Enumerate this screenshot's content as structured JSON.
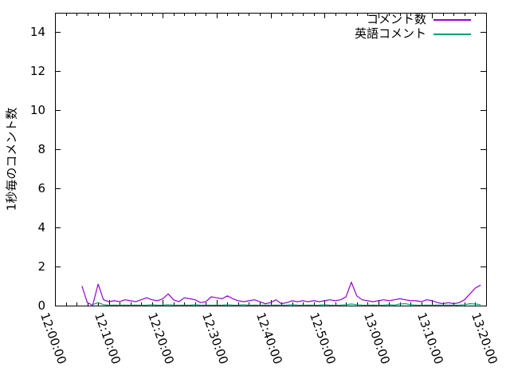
{
  "figure": {
    "background_color": "#ffffff",
    "axis_color": "#000000",
    "text_color": "#000000"
  },
  "chart_data": {
    "type": "line",
    "title": "",
    "xlabel": "",
    "ylabel": "1秒毎のコメント数",
    "ylim": [
      0,
      15
    ],
    "yticks": [
      0,
      2,
      4,
      6,
      8,
      10,
      12,
      14
    ],
    "xticks": [
      "12:00:00",
      "12:10:00",
      "12:20:00",
      "12:30:00",
      "12:40:00",
      "12:50:00",
      "13:00:00",
      "13:10:00",
      "13:20:00"
    ],
    "x_minor_tick_interval_minutes": 2,
    "x_range": [
      "12:00:00",
      "13:20:00"
    ],
    "grid": false,
    "legend_position": "top-right-inside",
    "series": [
      {
        "key": "comment-count",
        "name": "コメント数",
        "color": "#9400d3",
        "points": [
          [
            "12:05",
            1.0
          ],
          [
            "12:06",
            0.15
          ],
          [
            "12:07",
            0.02
          ],
          [
            "12:08",
            1.1
          ],
          [
            "12:09",
            0.3
          ],
          [
            "12:10",
            0.2
          ],
          [
            "12:11",
            0.25
          ],
          [
            "12:12",
            0.2
          ],
          [
            "12:13",
            0.3
          ],
          [
            "12:14",
            0.25
          ],
          [
            "12:15",
            0.2
          ],
          [
            "12:16",
            0.3
          ],
          [
            "12:17",
            0.4
          ],
          [
            "12:18",
            0.3
          ],
          [
            "12:19",
            0.25
          ],
          [
            "12:20",
            0.35
          ],
          [
            "12:21",
            0.6
          ],
          [
            "12:22",
            0.3
          ],
          [
            "12:23",
            0.2
          ],
          [
            "12:24",
            0.4
          ],
          [
            "12:25",
            0.35
          ],
          [
            "12:26",
            0.3
          ],
          [
            "12:27",
            0.15
          ],
          [
            "12:28",
            0.2
          ],
          [
            "12:29",
            0.45
          ],
          [
            "12:30",
            0.4
          ],
          [
            "12:31",
            0.35
          ],
          [
            "12:32",
            0.5
          ],
          [
            "12:33",
            0.35
          ],
          [
            "12:34",
            0.25
          ],
          [
            "12:35",
            0.2
          ],
          [
            "12:36",
            0.25
          ],
          [
            "12:37",
            0.3
          ],
          [
            "12:38",
            0.2
          ],
          [
            "12:39",
            0.1
          ],
          [
            "12:40",
            0.15
          ],
          [
            "12:41",
            0.3
          ],
          [
            "12:42",
            0.1
          ],
          [
            "12:43",
            0.15
          ],
          [
            "12:44",
            0.25
          ],
          [
            "12:45",
            0.2
          ],
          [
            "12:46",
            0.25
          ],
          [
            "12:47",
            0.2
          ],
          [
            "12:48",
            0.25
          ],
          [
            "12:49",
            0.2
          ],
          [
            "12:50",
            0.25
          ],
          [
            "12:51",
            0.3
          ],
          [
            "12:52",
            0.25
          ],
          [
            "12:53",
            0.3
          ],
          [
            "12:54",
            0.45
          ],
          [
            "12:55",
            1.2
          ],
          [
            "12:56",
            0.5
          ],
          [
            "12:57",
            0.3
          ],
          [
            "12:58",
            0.25
          ],
          [
            "12:59",
            0.2
          ],
          [
            "13:00",
            0.25
          ],
          [
            "13:01",
            0.3
          ],
          [
            "13:02",
            0.25
          ],
          [
            "13:03",
            0.3
          ],
          [
            "13:04",
            0.35
          ],
          [
            "13:05",
            0.3
          ],
          [
            "13:06",
            0.25
          ],
          [
            "13:07",
            0.25
          ],
          [
            "13:08",
            0.2
          ],
          [
            "13:09",
            0.3
          ],
          [
            "13:10",
            0.25
          ],
          [
            "13:11",
            0.15
          ],
          [
            "13:12",
            0.1
          ],
          [
            "13:13",
            0.15
          ],
          [
            "13:14",
            0.1
          ],
          [
            "13:15",
            0.15
          ],
          [
            "13:16",
            0.3
          ],
          [
            "13:17",
            0.6
          ],
          [
            "13:18",
            0.9
          ],
          [
            "13:19",
            1.05
          ]
        ]
      },
      {
        "key": "english-comment",
        "name": "英語コメント",
        "color": "#009e73",
        "points": [
          [
            "12:07",
            0.05
          ],
          [
            "12:08",
            0.15
          ],
          [
            "12:09",
            0.05
          ],
          [
            "12:10",
            0.02
          ],
          [
            "12:11",
            0.03
          ],
          [
            "12:12",
            0.02
          ],
          [
            "12:13",
            0.03
          ],
          [
            "12:14",
            0.02
          ],
          [
            "12:15",
            0.03
          ],
          [
            "12:16",
            0.02
          ],
          [
            "12:17",
            0.03
          ],
          [
            "12:18",
            0.05
          ],
          [
            "12:19",
            0.02
          ],
          [
            "12:20",
            0.03
          ],
          [
            "12:21",
            0.05
          ],
          [
            "12:22",
            0.03
          ],
          [
            "12:23",
            0.02
          ],
          [
            "12:24",
            0.03
          ],
          [
            "12:25",
            0.02
          ],
          [
            "12:26",
            0.05
          ],
          [
            "12:27",
            0.02
          ],
          [
            "12:28",
            0.03
          ],
          [
            "12:29",
            0.02
          ],
          [
            "12:30",
            0.03
          ],
          [
            "12:31",
            0.02
          ],
          [
            "12:32",
            0.05
          ],
          [
            "12:33",
            0.03
          ],
          [
            "12:34",
            0.02
          ],
          [
            "12:35",
            0.05
          ],
          [
            "12:36",
            0.02
          ],
          [
            "12:37",
            0.03
          ],
          [
            "12:38",
            0.02
          ],
          [
            "12:39",
            0.03
          ],
          [
            "12:40",
            0.02
          ],
          [
            "12:41",
            0.03
          ],
          [
            "12:42",
            0.02
          ],
          [
            "12:43",
            0.03
          ],
          [
            "12:44",
            0.05
          ],
          [
            "12:45",
            0.03
          ],
          [
            "12:46",
            0.02
          ],
          [
            "12:47",
            0.03
          ],
          [
            "12:48",
            0.02
          ],
          [
            "12:49",
            0.03
          ],
          [
            "12:50",
            0.05
          ],
          [
            "12:51",
            0.03
          ],
          [
            "12:52",
            0.02
          ],
          [
            "12:53",
            0.03
          ],
          [
            "12:54",
            0.05
          ],
          [
            "12:55",
            0.08
          ],
          [
            "12:56",
            0.05
          ],
          [
            "12:57",
            0.03
          ],
          [
            "12:58",
            0.02
          ],
          [
            "12:59",
            0.03
          ],
          [
            "13:00",
            0.02
          ],
          [
            "13:01",
            0.03
          ],
          [
            "13:02",
            0.05
          ],
          [
            "13:03",
            0.03
          ],
          [
            "13:04",
            0.08
          ],
          [
            "13:05",
            0.1
          ],
          [
            "13:06",
            0.05
          ],
          [
            "13:07",
            0.03
          ],
          [
            "13:08",
            0.02
          ],
          [
            "13:09",
            0.03
          ],
          [
            "13:10",
            0.02
          ],
          [
            "13:11",
            0.03
          ],
          [
            "13:12",
            0.02
          ],
          [
            "13:13",
            0.03
          ],
          [
            "13:14",
            0.02
          ],
          [
            "13:15",
            0.03
          ],
          [
            "13:16",
            0.05
          ],
          [
            "13:17",
            0.1
          ],
          [
            "13:18",
            0.08
          ],
          [
            "13:19",
            0.05
          ]
        ]
      }
    ]
  }
}
